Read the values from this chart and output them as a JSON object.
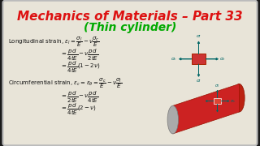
{
  "title_line1": "Mechanics of Materials – Part 33",
  "title_line2": "(Thin cylinder)",
  "title1_color": "#dd1111",
  "title2_color": "#00aa00",
  "bg_color": "#1a1a1a",
  "content_bg": "#e8e4d8",
  "border_color": "#cccccc",
  "text_color": "#111111",
  "stress_rect_color": "#cc3333",
  "arrow_color": "#006666",
  "cylinder_body_color": "#cc2222",
  "cylinder_end_color": "#aaaaaa"
}
